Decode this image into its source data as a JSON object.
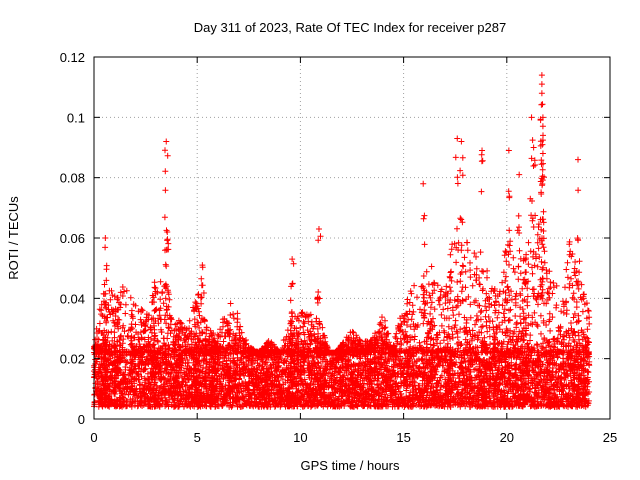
{
  "chart_data": {
    "type": "scatter",
    "title": "Day 311 of 2023, Rate Of TEC Index for receiver p287",
    "xlabel": "GPS time / hours",
    "ylabel": "ROTI / TECUs",
    "xlim": [
      0,
      25
    ],
    "ylim": [
      0,
      0.12
    ],
    "x_ticks": [
      0,
      5,
      10,
      15,
      20,
      25
    ],
    "x_tick_labels": [
      "0",
      "5",
      "10",
      "15",
      "20",
      "25"
    ],
    "y_ticks": [
      0,
      0.02,
      0.04,
      0.06,
      0.08,
      0.1,
      0.12
    ],
    "y_tick_labels": [
      "0",
      "0.02",
      "0.04",
      "0.06",
      "0.08",
      "0.1",
      "0.12"
    ],
    "grid": true,
    "marker": "+",
    "color": "#ff0000",
    "data_range_x": [
      0,
      24
    ],
    "baseline_band": [
      0.004,
      0.022
    ],
    "envelope": [
      {
        "x": 0.0,
        "y": 0.025
      },
      {
        "x": 0.5,
        "y": 0.046
      },
      {
        "x": 1.0,
        "y": 0.042
      },
      {
        "x": 1.5,
        "y": 0.045
      },
      {
        "x": 2.0,
        "y": 0.038
      },
      {
        "x": 2.5,
        "y": 0.036
      },
      {
        "x": 3.0,
        "y": 0.047
      },
      {
        "x": 3.5,
        "y": 0.045
      },
      {
        "x": 4.0,
        "y": 0.035
      },
      {
        "x": 4.5,
        "y": 0.03
      },
      {
        "x": 5.0,
        "y": 0.043
      },
      {
        "x": 5.5,
        "y": 0.03
      },
      {
        "x": 6.0,
        "y": 0.028
      },
      {
        "x": 6.5,
        "y": 0.04
      },
      {
        "x": 7.0,
        "y": 0.035
      },
      {
        "x": 7.5,
        "y": 0.024
      },
      {
        "x": 8.0,
        "y": 0.022
      },
      {
        "x": 8.5,
        "y": 0.027
      },
      {
        "x": 9.0,
        "y": 0.022
      },
      {
        "x": 9.5,
        "y": 0.033
      },
      {
        "x": 10.0,
        "y": 0.036
      },
      {
        "x": 10.5,
        "y": 0.036
      },
      {
        "x": 11.0,
        "y": 0.032
      },
      {
        "x": 11.5,
        "y": 0.02
      },
      {
        "x": 12.0,
        "y": 0.025
      },
      {
        "x": 12.5,
        "y": 0.03
      },
      {
        "x": 13.0,
        "y": 0.025
      },
      {
        "x": 13.5,
        "y": 0.028
      },
      {
        "x": 14.0,
        "y": 0.035
      },
      {
        "x": 14.5,
        "y": 0.025
      },
      {
        "x": 15.0,
        "y": 0.04
      },
      {
        "x": 15.5,
        "y": 0.045
      },
      {
        "x": 16.0,
        "y": 0.052
      },
      {
        "x": 16.5,
        "y": 0.05
      },
      {
        "x": 17.0,
        "y": 0.045
      },
      {
        "x": 17.5,
        "y": 0.065
      },
      {
        "x": 18.0,
        "y": 0.06
      },
      {
        "x": 18.5,
        "y": 0.055
      },
      {
        "x": 19.0,
        "y": 0.05
      },
      {
        "x": 19.5,
        "y": 0.045
      },
      {
        "x": 20.0,
        "y": 0.058
      },
      {
        "x": 20.5,
        "y": 0.052
      },
      {
        "x": 21.0,
        "y": 0.062
      },
      {
        "x": 21.5,
        "y": 0.07
      },
      {
        "x": 22.0,
        "y": 0.05
      },
      {
        "x": 22.5,
        "y": 0.045
      },
      {
        "x": 23.0,
        "y": 0.06
      },
      {
        "x": 23.5,
        "y": 0.055
      },
      {
        "x": 24.0,
        "y": 0.035
      }
    ],
    "notable_points": [
      {
        "x": 0.55,
        "y": 0.06
      },
      {
        "x": 3.5,
        "y": 0.092
      },
      {
        "x": 3.55,
        "y": 0.062
      },
      {
        "x": 5.25,
        "y": 0.051
      },
      {
        "x": 9.6,
        "y": 0.053
      },
      {
        "x": 10.9,
        "y": 0.063
      },
      {
        "x": 15.95,
        "y": 0.078
      },
      {
        "x": 17.6,
        "y": 0.093
      },
      {
        "x": 17.8,
        "y": 0.092
      },
      {
        "x": 18.8,
        "y": 0.089
      },
      {
        "x": 20.1,
        "y": 0.089
      },
      {
        "x": 20.6,
        "y": 0.081
      },
      {
        "x": 21.2,
        "y": 0.1
      },
      {
        "x": 21.3,
        "y": 0.09
      },
      {
        "x": 21.7,
        "y": 0.114
      },
      {
        "x": 21.7,
        "y": 0.111
      },
      {
        "x": 21.7,
        "y": 0.108
      },
      {
        "x": 21.75,
        "y": 0.1
      },
      {
        "x": 21.75,
        "y": 0.088
      },
      {
        "x": 23.45,
        "y": 0.086
      }
    ]
  }
}
